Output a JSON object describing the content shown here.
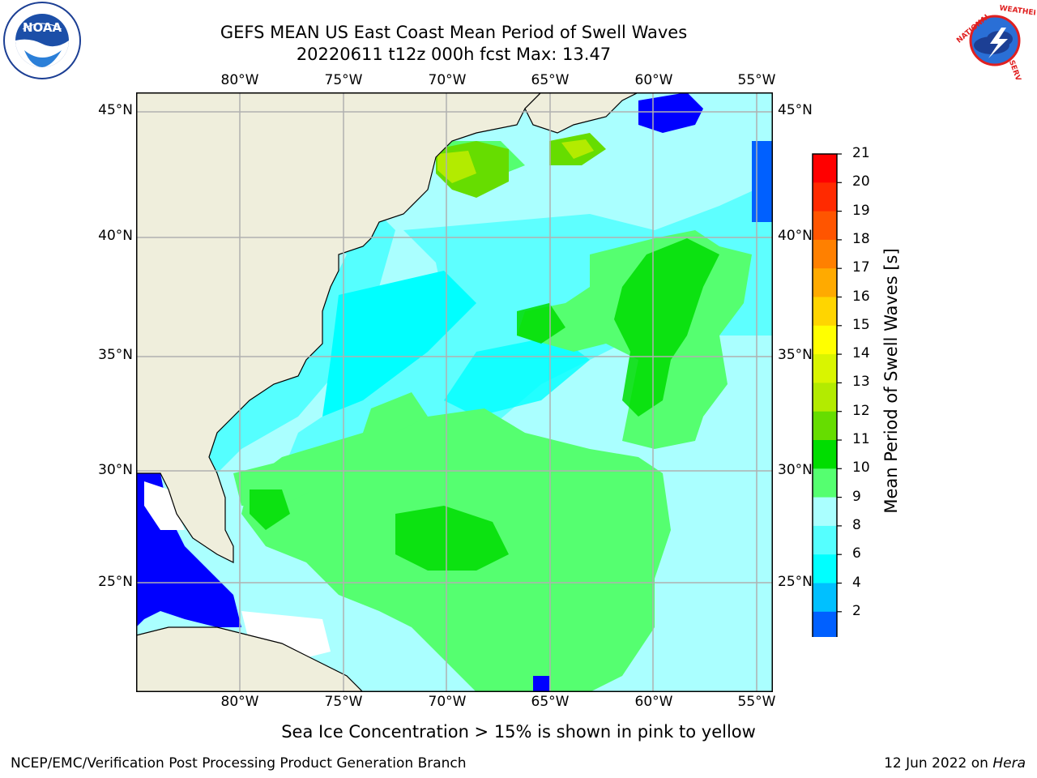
{
  "title": {
    "line1": "GEFS MEAN US East Coast Mean Period of Swell Waves",
    "line2": "20220611 t12z 000h fcst   Max: 13.47"
  },
  "logos": {
    "left": {
      "name": "noaa-logo",
      "text": "NOAA"
    },
    "right": {
      "name": "nws-logo",
      "text": "NATIONAL WEATHER SERVICE"
    }
  },
  "map": {
    "lon_labels": [
      "80°W",
      "75°W",
      "70°W",
      "65°W",
      "60°W",
      "55°W"
    ],
    "lat_labels": [
      "45°N",
      "40°N",
      "35°N",
      "30°N",
      "25°N"
    ]
  },
  "colorbar": {
    "label": "Mean Period of Swell Waves [s]",
    "ticks": [
      "21",
      "20",
      "19",
      "18",
      "17",
      "16",
      "15",
      "14",
      "13",
      "12",
      "11",
      "10",
      "9",
      "8",
      "6",
      "4",
      "2"
    ],
    "colors": [
      "#ff0000",
      "#ff2a00",
      "#ff5500",
      "#ff8000",
      "#ffaa00",
      "#ffd500",
      "#ffff00",
      "#d9f500",
      "#b3eb00",
      "#66dd00",
      "#00dd00",
      "#55ff70",
      "#aaffff",
      "#55ffff",
      "#00ffff",
      "#00c0ff",
      "#0060ff"
    ],
    "extend_color": "#0000ff"
  },
  "note": "Sea Ice Concentration > 15% is shown in pink to yellow",
  "footer": {
    "left": "NCEP/EMC/Verification Post Processing Product Generation Branch",
    "right_date": "12 Jun 2022 on ",
    "right_host": "Hera"
  },
  "colors": {
    "land": "#efeedc",
    "ocean_base": "#aaffff",
    "grid": "#b0b0b0"
  }
}
